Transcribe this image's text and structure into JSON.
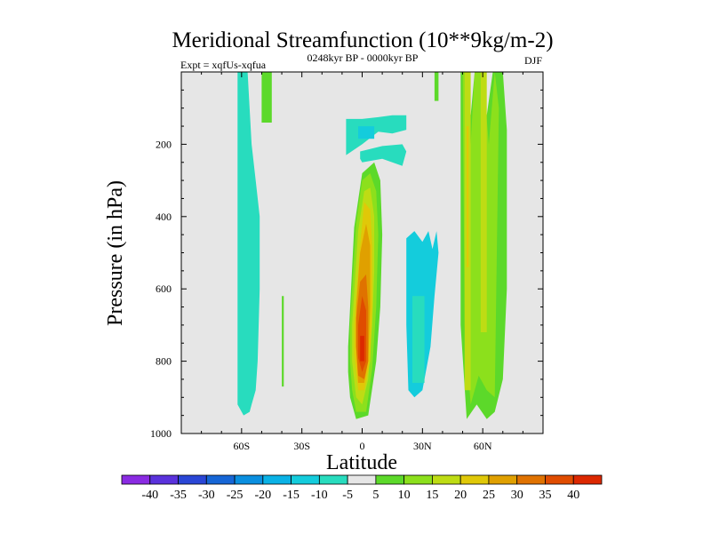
{
  "chart_data": {
    "type": "heatmap",
    "title": "Meridional Streamfunction (10**9kg/m-2)",
    "left_annotation": "Expt = xqfUs-xqfua",
    "center_annotation": "0248kyr BP - 0000kyr BP",
    "right_annotation": "DJF",
    "xlabel": "Latitude",
    "ylabel": "Pressure (in hPa)",
    "xlim": [
      -90,
      90
    ],
    "ylim": [
      1000,
      0
    ],
    "x_ticks": [
      {
        "value": -60,
        "label": "60S"
      },
      {
        "value": -30,
        "label": "30S"
      },
      {
        "value": 0,
        "label": "0"
      },
      {
        "value": 30,
        "label": "30N"
      },
      {
        "value": 60,
        "label": "60N"
      }
    ],
    "y_ticks": [
      {
        "value": 200,
        "label": "200"
      },
      {
        "value": 400,
        "label": "400"
      },
      {
        "value": 600,
        "label": "600"
      },
      {
        "value": 800,
        "label": "800"
      },
      {
        "value": 1000,
        "label": "1000"
      }
    ],
    "background_color": "#e6e6e6",
    "colorbar": {
      "labels": [
        "-40",
        "-35",
        "-30",
        "-25",
        "-20",
        "-15",
        "-10",
        "-5",
        "5",
        "10",
        "15",
        "20",
        "25",
        "30",
        "35",
        "40"
      ],
      "colors": [
        "#8a2be2",
        "#5a32dc",
        "#2a46d6",
        "#1666d6",
        "#0a8fe0",
        "#0ab2e6",
        "#14ccdc",
        "#28dcbe",
        "#e6e6e6",
        "#5cd92a",
        "#8ce01c",
        "#bedc14",
        "#e0c808",
        "#e0a000",
        "#e07200",
        "#e04c00",
        "#dc2800"
      ]
    },
    "regions": [
      {
        "level": -10,
        "color": "#28dcbe",
        "lat": [
          -62,
          -61,
          -60,
          -57,
          -55,
          -53,
          -51,
          -51,
          -52,
          -53,
          -55,
          -56,
          -59,
          -62,
          -62
        ],
        "p": [
          0,
          0,
          0,
          0,
          200,
          300,
          400,
          600,
          800,
          880,
          920,
          940,
          950,
          920,
          600
        ]
      },
      {
        "level": 5,
        "color": "#5cd92a",
        "lat": [
          -50,
          -45,
          -45,
          -50
        ],
        "p": [
          0,
          0,
          140,
          140
        ]
      },
      {
        "level": 5,
        "color": "#5cd92a",
        "lat": [
          -40,
          -39,
          -39,
          -40
        ],
        "p": [
          620,
          620,
          870,
          870
        ]
      },
      {
        "level": -10,
        "color": "#28dcbe",
        "lat": [
          -8,
          0,
          8,
          15,
          22,
          22,
          15,
          8,
          0,
          -8
        ],
        "p": [
          130,
          130,
          125,
          120,
          120,
          160,
          170,
          165,
          200,
          230
        ]
      },
      {
        "level": -15,
        "color": "#14ccdc",
        "lat": [
          -2,
          6,
          6,
          -2
        ],
        "p": [
          150,
          150,
          185,
          185
        ]
      },
      {
        "level": -10,
        "color": "#28dcbe",
        "lat": [
          -1,
          10,
          20,
          22,
          20,
          10,
          0,
          -1
        ],
        "p": [
          220,
          205,
          200,
          220,
          260,
          240,
          250,
          240
        ]
      },
      {
        "level": -5,
        "color": "#14ccdc",
        "lat": [
          22,
          26,
          30,
          33,
          35,
          37,
          38,
          36,
          34,
          30,
          26,
          23,
          22
        ],
        "p": [
          460,
          440,
          470,
          440,
          490,
          440,
          500,
          620,
          760,
          880,
          900,
          880,
          700
        ]
      },
      {
        "level": -10,
        "color": "#28dcbe",
        "lat": [
          25,
          31,
          31,
          25
        ],
        "p": [
          620,
          620,
          860,
          860
        ]
      },
      {
        "level": 5,
        "color": "#5cd92a",
        "lat": [
          36,
          38,
          38,
          36
        ],
        "p": [
          0,
          0,
          80,
          80
        ]
      },
      {
        "level": 5,
        "color": "#5cd92a",
        "lat": [
          -7,
          -4,
          0,
          6,
          9,
          10,
          9,
          7,
          3,
          -3,
          -6,
          -7,
          -7
        ],
        "p": [
          760,
          430,
          280,
          250,
          300,
          450,
          650,
          800,
          950,
          960,
          900,
          830,
          760
        ]
      },
      {
        "level": 10,
        "color": "#8ce01c",
        "lat": [
          -6,
          -3,
          0,
          4,
          7,
          8,
          7,
          5,
          2,
          -3,
          -5,
          -6
        ],
        "p": [
          700,
          420,
          300,
          280,
          330,
          450,
          650,
          820,
          940,
          940,
          880,
          800
        ]
      },
      {
        "level": 15,
        "color": "#bedc14",
        "lat": [
          -5,
          -2,
          1,
          4,
          6,
          6,
          5,
          3,
          0,
          -3,
          -5
        ],
        "p": [
          700,
          440,
          330,
          320,
          400,
          550,
          700,
          850,
          920,
          900,
          800
        ]
      },
      {
        "level": 20,
        "color": "#e0c808",
        "lat": [
          -4,
          -1,
          1,
          4,
          5,
          5,
          4,
          1,
          -2,
          -4
        ],
        "p": [
          700,
          480,
          360,
          380,
          480,
          650,
          800,
          880,
          880,
          780
        ]
      },
      {
        "level": 25,
        "color": "#e0a000",
        "lat": [
          -3,
          -1,
          2,
          4,
          4,
          3,
          1,
          -2,
          -3
        ],
        "p": [
          650,
          500,
          420,
          480,
          650,
          800,
          860,
          860,
          760
        ]
      },
      {
        "level": 30,
        "color": "#e07200",
        "lat": [
          -3,
          -1,
          2,
          3,
          3,
          1,
          -2,
          -3
        ],
        "p": [
          680,
          580,
          560,
          650,
          800,
          850,
          840,
          760
        ]
      },
      {
        "level": 35,
        "color": "#e04c00",
        "lat": [
          -2,
          0,
          2,
          2,
          0,
          -2
        ],
        "p": [
          700,
          620,
          660,
          800,
          830,
          790
        ]
      },
      {
        "level": 40,
        "color": "#dc2800",
        "lat": [
          -1,
          1,
          1,
          -1
        ],
        "p": [
          730,
          730,
          800,
          800
        ]
      },
      {
        "level": 5,
        "color": "#5cd92a",
        "lat": [
          49,
          52,
          54,
          56,
          60,
          62,
          65,
          70,
          72,
          72,
          70,
          66,
          62,
          57,
          52,
          49
        ],
        "p": [
          0,
          0,
          120,
          0,
          0,
          120,
          0,
          0,
          160,
          600,
          850,
          940,
          960,
          920,
          960,
          700
        ]
      },
      {
        "level": 10,
        "color": "#8ce01c",
        "lat": [
          50,
          52,
          54,
          56,
          60,
          63,
          66,
          68,
          66,
          62,
          58,
          54,
          51
        ],
        "p": [
          0,
          0,
          200,
          0,
          0,
          200,
          0,
          100,
          900,
          880,
          840,
          920,
          700
        ]
      },
      {
        "level": 15,
        "color": "#bedc14",
        "lat": [
          51,
          54,
          54,
          51
        ],
        "p": [
          0,
          0,
          880,
          880
        ]
      },
      {
        "level": 15,
        "color": "#bedc14",
        "lat": [
          59,
          62,
          62,
          59
        ],
        "p": [
          0,
          0,
          720,
          720
        ]
      },
      {
        "level": 20,
        "color": "#e0c808",
        "lat": [
          52,
          53,
          53,
          52
        ],
        "p": [
          150,
          150,
          540,
          540
        ]
      }
    ]
  }
}
